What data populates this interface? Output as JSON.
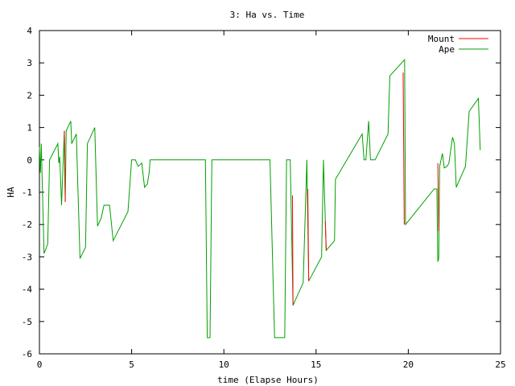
{
  "chart_data": {
    "type": "line",
    "title": "3: Ha vs. Time",
    "xlabel": "time (Elapse Hours)",
    "ylabel": "HA",
    "xlim": [
      0,
      25
    ],
    "ylim": [
      -6,
      4
    ],
    "xticks": [
      0,
      5,
      10,
      15,
      20,
      25
    ],
    "yticks": [
      -6,
      -5,
      -4,
      -3,
      -2,
      -1,
      0,
      1,
      2,
      3,
      4
    ],
    "grid": false,
    "legend_position": "top-right",
    "series": [
      {
        "name": "Mount",
        "color": "#ff0000",
        "segments": [
          [
            [
              1.35,
              0.9
            ],
            [
              1.4,
              -1.3
            ]
          ],
          [
            [
              13.72,
              -1.1
            ],
            [
              13.75,
              -4.5
            ]
          ],
          [
            [
              14.55,
              -0.9
            ],
            [
              14.6,
              -3.75
            ]
          ],
          [
            [
              15.5,
              -1.9
            ],
            [
              15.55,
              -2.8
            ]
          ],
          [
            [
              19.72,
              2.7
            ],
            [
              19.78,
              -2.0
            ]
          ],
          [
            [
              21.6,
              -0.1
            ],
            [
              21.65,
              -2.2
            ]
          ]
        ]
      },
      {
        "name": "Ape",
        "color": "#00a000",
        "points": [
          [
            0.0,
            0.4
          ],
          [
            0.05,
            -0.4
          ],
          [
            0.1,
            0.5
          ],
          [
            0.25,
            -2.9
          ],
          [
            0.45,
            -2.6
          ],
          [
            0.55,
            0.0
          ],
          [
            1.0,
            0.5
          ],
          [
            1.05,
            -0.1
          ],
          [
            1.1,
            0.1
          ],
          [
            1.2,
            -1.4
          ],
          [
            1.35,
            0.9
          ],
          [
            1.4,
            -1.3
          ],
          [
            1.45,
            0.9
          ],
          [
            1.7,
            1.2
          ],
          [
            1.75,
            0.5
          ],
          [
            2.0,
            0.8
          ],
          [
            2.2,
            -3.05
          ],
          [
            2.5,
            -2.7
          ],
          [
            2.6,
            0.5
          ],
          [
            3.0,
            1.0
          ],
          [
            3.15,
            -2.05
          ],
          [
            3.35,
            -1.8
          ],
          [
            3.5,
            -1.4
          ],
          [
            3.65,
            -1.4
          ],
          [
            3.8,
            -1.4
          ],
          [
            4.0,
            -2.5
          ],
          [
            4.8,
            -1.6
          ],
          [
            5.0,
            0.0
          ],
          [
            5.2,
            0.0
          ],
          [
            5.35,
            -0.2
          ],
          [
            5.55,
            -0.1
          ],
          [
            5.7,
            -0.85
          ],
          [
            5.85,
            -0.75
          ],
          [
            5.95,
            -0.4
          ],
          [
            6.0,
            0.0
          ],
          [
            9.0,
            0.0
          ],
          [
            9.1,
            -5.5
          ],
          [
            9.25,
            -5.5
          ],
          [
            9.35,
            0.0
          ],
          [
            12.5,
            0.0
          ],
          [
            12.75,
            -5.5
          ],
          [
            13.3,
            -5.5
          ],
          [
            13.4,
            0.0
          ],
          [
            13.6,
            0.0
          ],
          [
            13.75,
            -4.5
          ],
          [
            14.3,
            -3.8
          ],
          [
            14.5,
            0.0
          ],
          [
            14.6,
            -3.75
          ],
          [
            15.3,
            -3.0
          ],
          [
            15.4,
            0.0
          ],
          [
            15.55,
            -2.8
          ],
          [
            16.0,
            -2.5
          ],
          [
            16.05,
            -0.6
          ],
          [
            17.5,
            0.8
          ],
          [
            17.6,
            0.0
          ],
          [
            17.7,
            0.0
          ],
          [
            17.85,
            1.2
          ],
          [
            17.95,
            0.0
          ],
          [
            18.2,
            0.0
          ],
          [
            18.9,
            0.8
          ],
          [
            19.0,
            2.6
          ],
          [
            19.8,
            3.1
          ],
          [
            19.85,
            -2.0
          ],
          [
            21.4,
            -0.9
          ],
          [
            21.55,
            -0.9
          ],
          [
            21.6,
            -3.15
          ],
          [
            21.65,
            -3.05
          ],
          [
            21.7,
            -0.2
          ],
          [
            21.85,
            0.2
          ],
          [
            21.95,
            -0.25
          ],
          [
            22.1,
            -0.2
          ],
          [
            22.2,
            -0.1
          ],
          [
            22.4,
            0.7
          ],
          [
            22.5,
            0.5
          ],
          [
            22.6,
            -0.85
          ],
          [
            23.1,
            -0.2
          ],
          [
            23.3,
            1.5
          ],
          [
            23.8,
            1.9
          ],
          [
            23.9,
            0.3
          ]
        ]
      }
    ]
  }
}
